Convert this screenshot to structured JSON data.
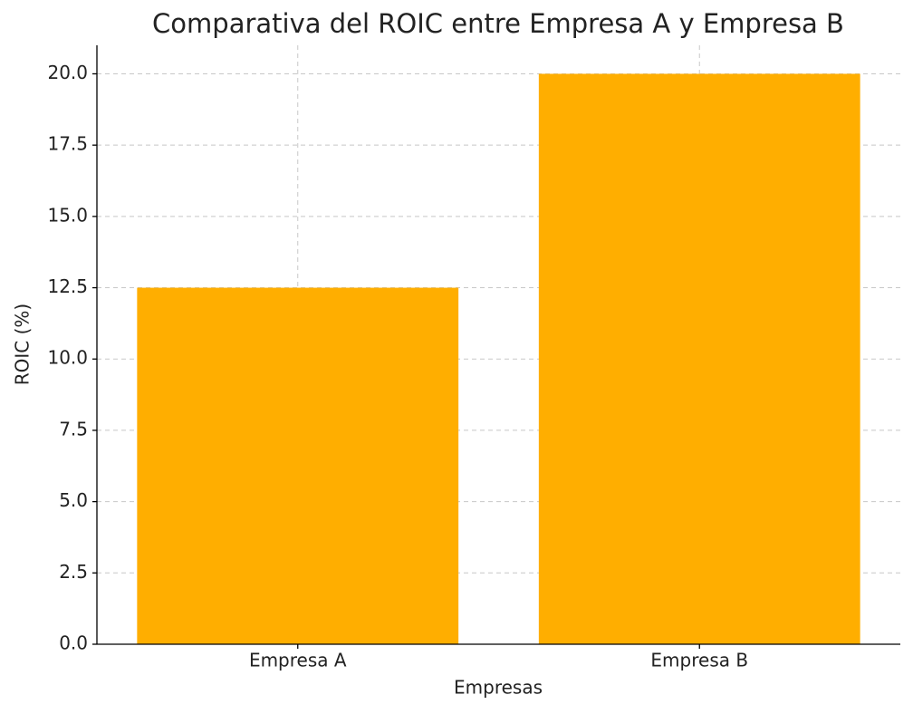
{
  "chart_data": {
    "type": "bar",
    "title": "Comparativa del ROIC entre Empresa A y Empresa B",
    "x_label": "Empresas",
    "y_label": "ROIC (%)",
    "categories": [
      "Empresa A",
      "Empresa B"
    ],
    "values": [
      12.5,
      20
    ],
    "color": "#ffae00",
    "ylim": [
      0,
      21
    ],
    "yticks": [
      {
        "value": 0,
        "label": "0.0"
      },
      2.5,
      {
        "value": 5,
        "label": "5.0"
      },
      7.5,
      {
        "value": 10,
        "label": "10.0"
      },
      12.5,
      {
        "value": 15,
        "label": "15.0"
      },
      17.5,
      {
        "value": 20,
        "label": "20.0"
      }
    ],
    "grid": true
  }
}
